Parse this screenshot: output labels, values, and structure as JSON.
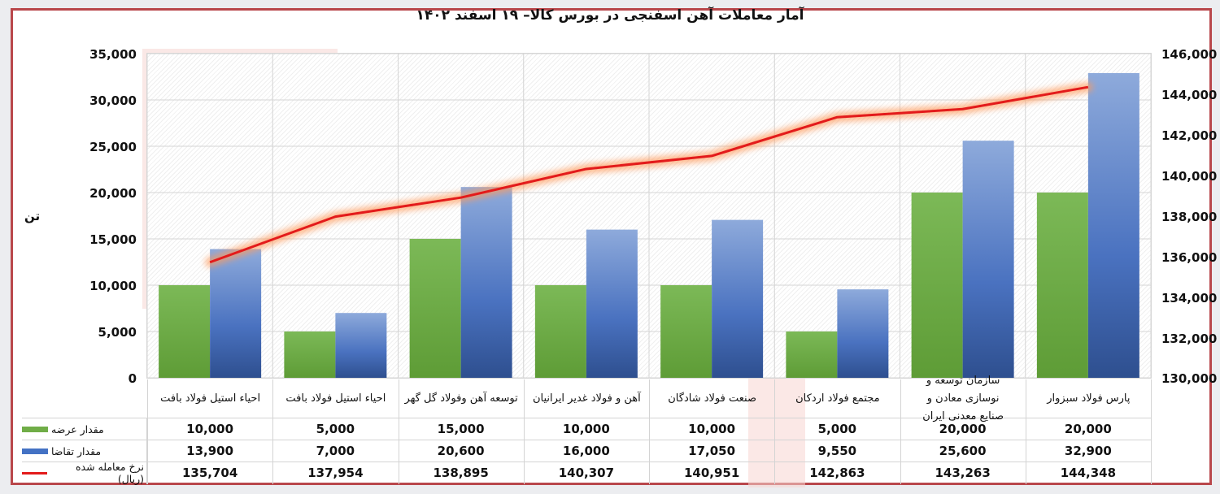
{
  "title": "آمار معاملات آهن اسفنجی در بورس کالا– ۱۹ اسفند ۱۴۰۲",
  "left_axis": {
    "unit_label": "تن",
    "ticks": [
      "35,000",
      "30,000",
      "25,000",
      "20,000",
      "15,000",
      "10,000",
      "5,000",
      "0"
    ]
  },
  "right_axis": {
    "ticks": [
      "146,000",
      "144,000",
      "142,000",
      "140,000",
      "138,000",
      "136,000",
      "134,000",
      "132,000",
      "130,000"
    ]
  },
  "legend": {
    "supply": "مقدار عرضه",
    "demand": "مقدار تقاضا",
    "price": "نرخ معامله شده (ریال)"
  },
  "colors": {
    "supply": "#70ad47",
    "demand": "#4472c4",
    "price": "#e31b1b",
    "frame": "#b9474b"
  },
  "categories": [
    {
      "label": "احیاء استیل فولاد بافت",
      "supply": "10,000",
      "demand": "13,900",
      "price": "135,704"
    },
    {
      "label": "احیاء استیل فولاد بافت",
      "supply": "5,000",
      "demand": "7,000",
      "price": "137,954"
    },
    {
      "label": "توسعه آهن وفولاد گل گهر",
      "supply": "15,000",
      "demand": "20,600",
      "price": "138,895"
    },
    {
      "label": "آهن و فولاد غدیر ایرانیان",
      "supply": "10,000",
      "demand": "16,000",
      "price": "140,307"
    },
    {
      "label": "صنعت فولاد شادگان",
      "supply": "10,000",
      "demand": "17,050",
      "price": "140,951"
    },
    {
      "label": "مجتمع فولاد اردکان",
      "supply": "5,000",
      "demand": "9,550",
      "price": "142,863"
    },
    {
      "label": "سازمان توسعه و نوسازی معادن و صنایع معدنی ایران",
      "supply": "20,000",
      "demand": "25,600",
      "price": "143,263"
    },
    {
      "label": "پارس فولاد سبزوار",
      "supply": "20,000",
      "demand": "32,900",
      "price": "144,348"
    }
  ],
  "chart_data": {
    "type": "bar",
    "title": "آمار معاملات آهن اسفنجی در بورس کالا– ۱۹ اسفند ۱۴۰۲",
    "xlabel": "",
    "ylabel": "تن",
    "y2label": "ریال",
    "categories": [
      "احیاء استیل فولاد بافت",
      "احیاء استیل فولاد بافت",
      "توسعه آهن وفولاد گل گهر",
      "آهن و فولاد غدیر ایرانیان",
      "صنعت فولاد شادگان",
      "مجتمع فولاد اردکان",
      "سازمان توسعه و نوسازی معادن و صنایع معدنی ایران",
      "پارس فولاد سبزوار"
    ],
    "series": [
      {
        "name": "مقدار عرضه",
        "type": "bar",
        "axis": "left",
        "color": "#70ad47",
        "values": [
          10000,
          5000,
          15000,
          10000,
          10000,
          5000,
          20000,
          20000
        ]
      },
      {
        "name": "مقدار تقاضا",
        "type": "bar",
        "axis": "left",
        "color": "#4472c4",
        "values": [
          13900,
          7000,
          20600,
          16000,
          17050,
          9550,
          25600,
          32900
        ]
      },
      {
        "name": "نرخ معامله شده (ریال)",
        "type": "line",
        "axis": "right",
        "color": "#e31b1b",
        "values": [
          135704,
          137954,
          138895,
          140307,
          140951,
          142863,
          143263,
          144348
        ]
      }
    ],
    "ylim": [
      0,
      35000
    ],
    "y2lim": [
      130000,
      146000
    ],
    "grid": true,
    "legend_position": "data-table-left"
  }
}
